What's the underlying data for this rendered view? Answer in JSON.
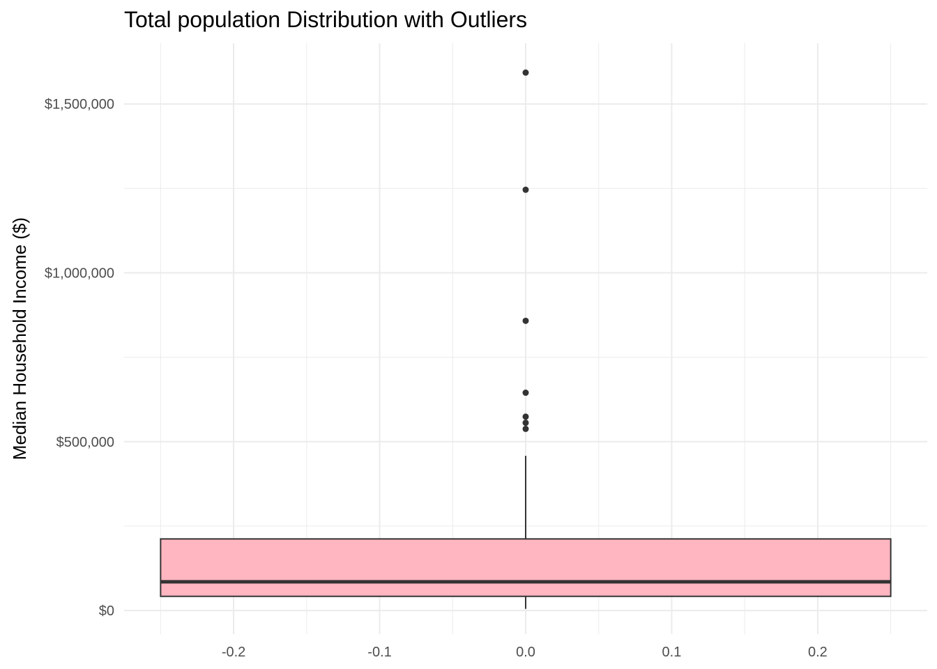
{
  "chart_data": {
    "type": "boxplot",
    "title": "Total population Distribution with Outliers",
    "xlabel": "",
    "ylabel": "Median Household Income ($)",
    "xlim": [
      -0.275,
      0.275
    ],
    "ylim": [
      -70000,
      1680000
    ],
    "x_ticks": [
      -0.2,
      -0.1,
      0.0,
      0.1,
      0.2
    ],
    "x_tick_labels": [
      "-0.2",
      "-0.1",
      "0.0",
      "0.1",
      "0.2"
    ],
    "x_minor_ticks": [
      -0.25,
      -0.15,
      -0.05,
      0.05,
      0.15,
      0.25
    ],
    "y_ticks": [
      0,
      500000,
      1000000,
      1500000
    ],
    "y_tick_labels": [
      "$0",
      "$500,000",
      "$1,000,000",
      "$1,500,000"
    ],
    "y_minor_ticks": [
      250000,
      750000,
      1250000
    ],
    "grid": true,
    "box": {
      "x_center": 0.0,
      "x_min": -0.25,
      "x_max": 0.25,
      "whisker_low": 5000,
      "q1": 42000,
      "median": 85000,
      "q3": 212000,
      "whisker_high": 458000,
      "fill": "#FFB6C1",
      "stroke": "#333333"
    },
    "outliers": [
      {
        "x": 0.0,
        "y": 538000
      },
      {
        "x": 0.0,
        "y": 556000
      },
      {
        "x": 0.0,
        "y": 574000
      },
      {
        "x": 0.0,
        "y": 645000
      },
      {
        "x": 0.0,
        "y": 858000
      },
      {
        "x": 0.0,
        "y": 1246000
      },
      {
        "x": 0.0,
        "y": 1593000
      }
    ]
  },
  "colors": {
    "grid": "#ebebeb",
    "outlier": "#333333"
  }
}
